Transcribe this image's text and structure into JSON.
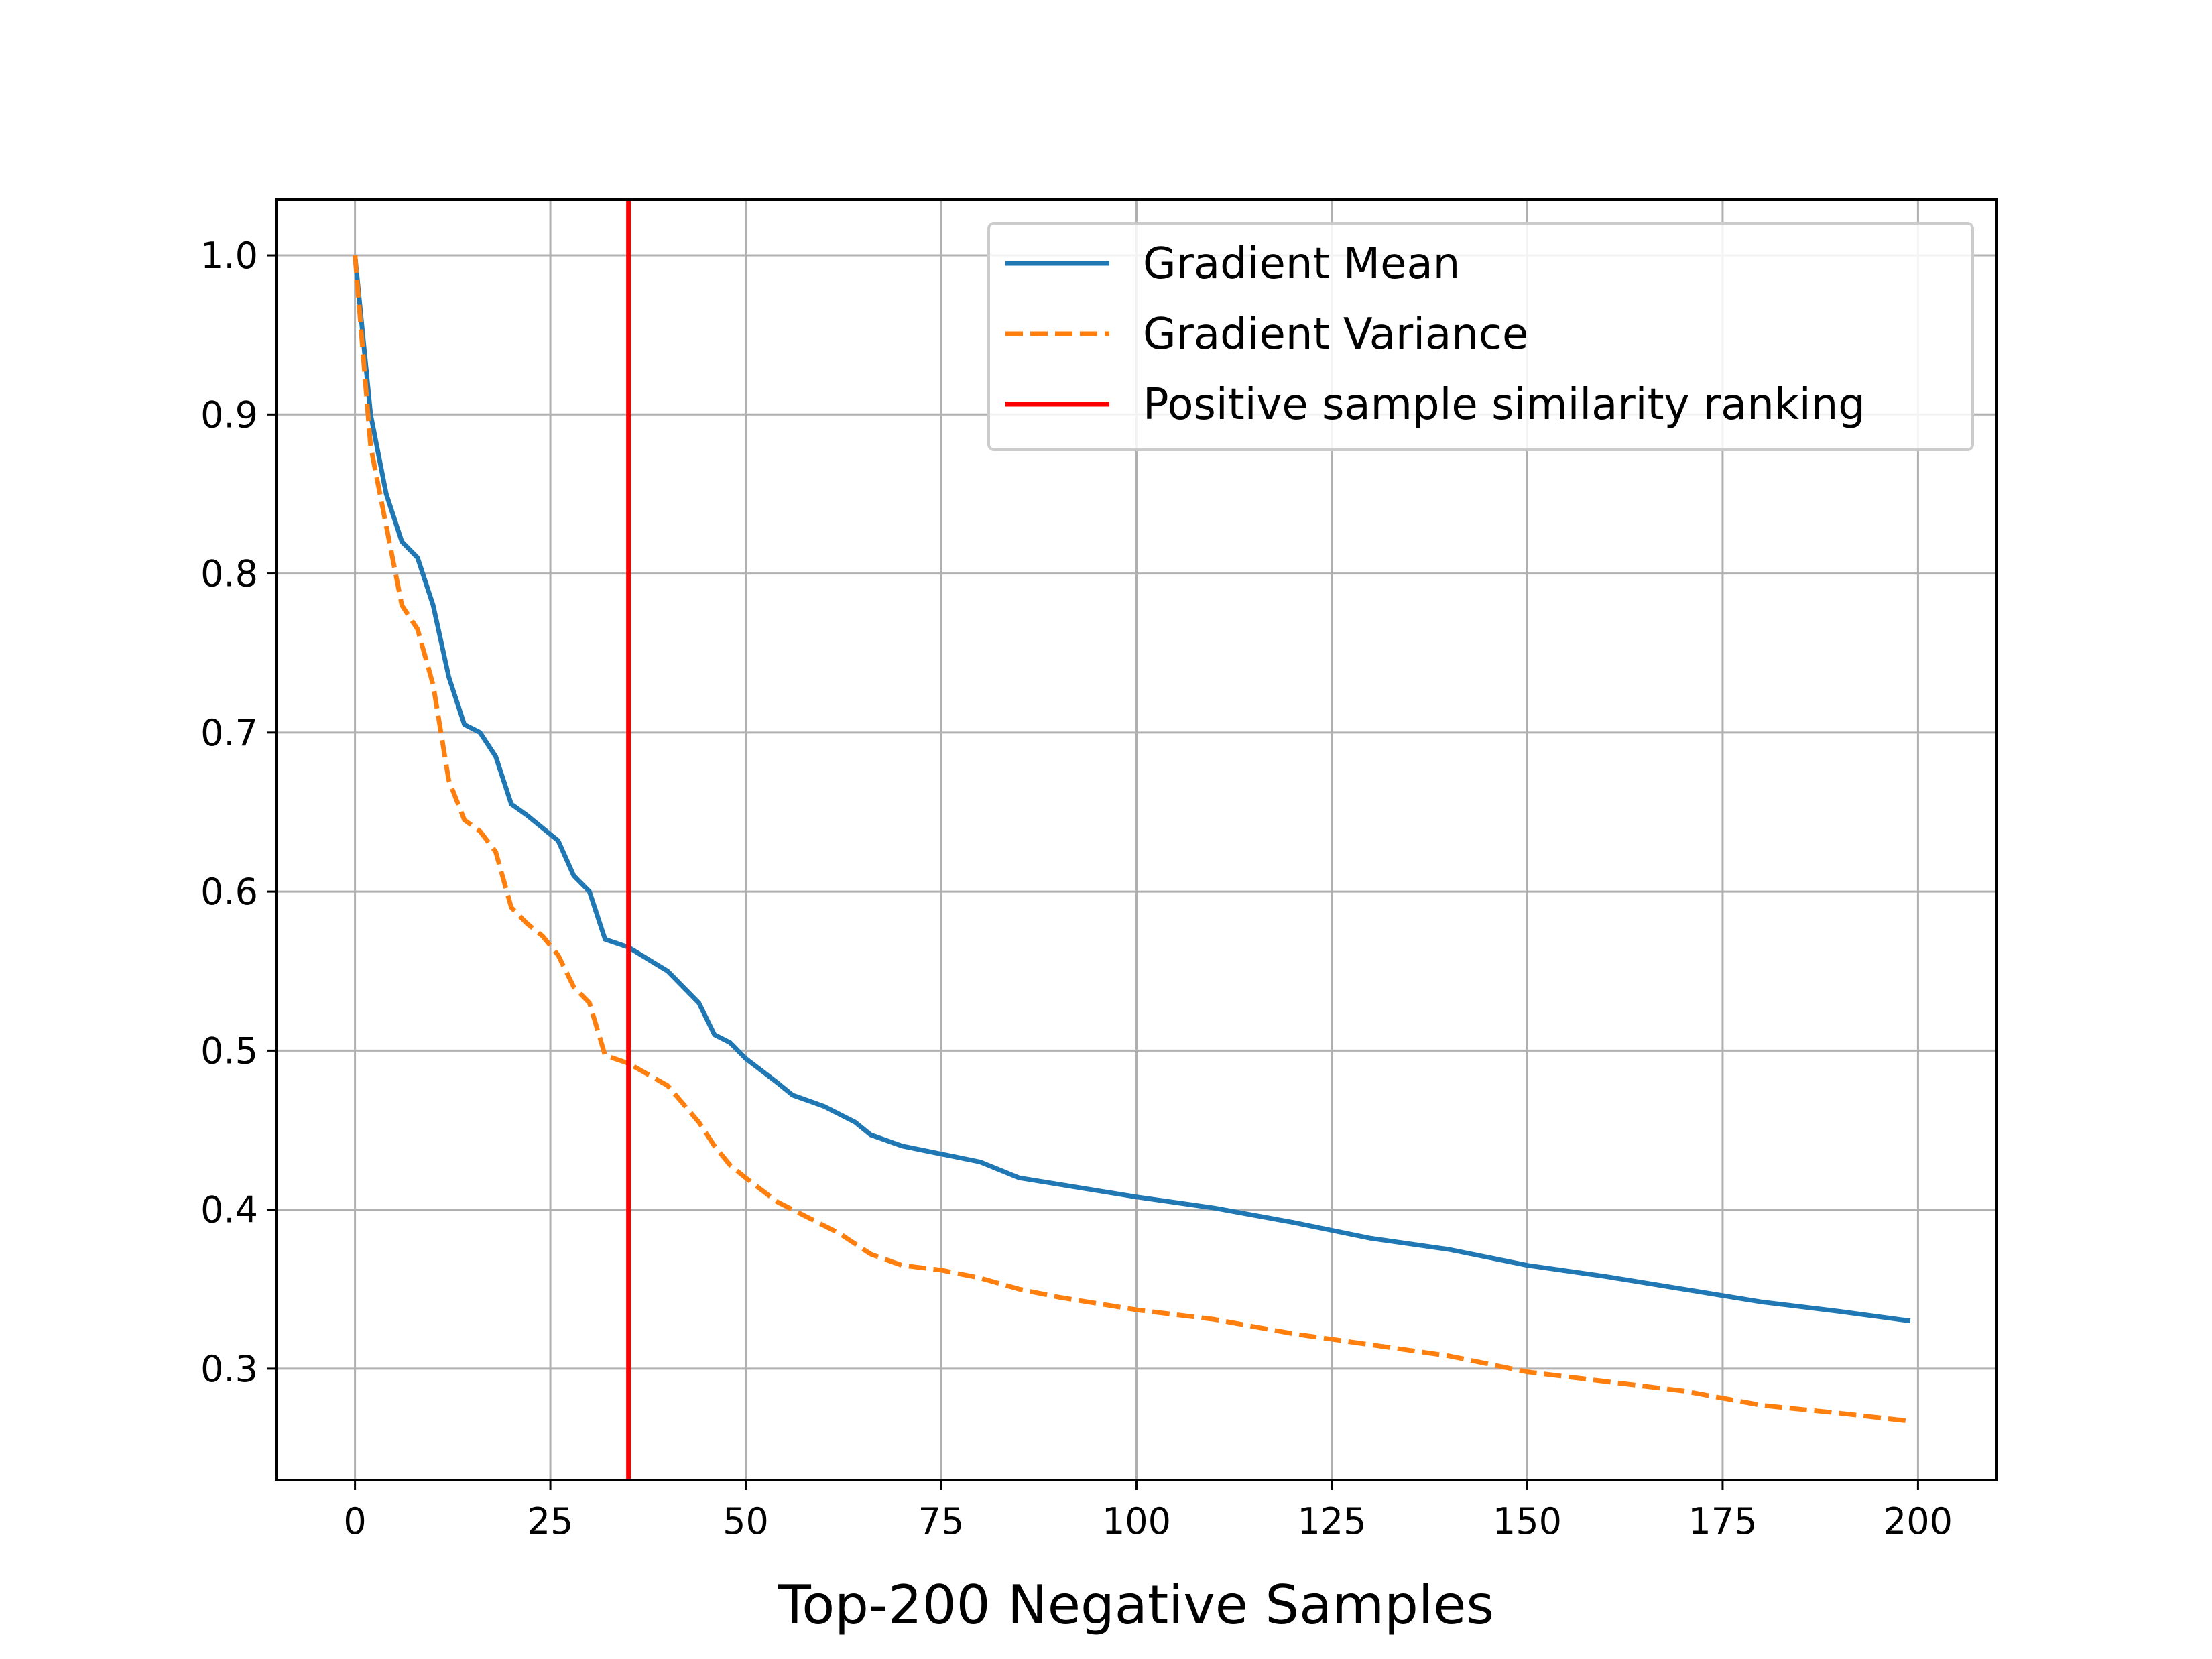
{
  "chart_data": {
    "type": "line",
    "title": "",
    "xlabel": "Top-200 Negative Samples",
    "ylabel": "",
    "xlim": [
      -10,
      210
    ],
    "ylim": [
      0.23,
      1.035
    ],
    "grid": true,
    "legend_position": "top-right",
    "x_ticks": [
      0,
      25,
      50,
      75,
      100,
      125,
      150,
      175,
      200
    ],
    "x_tick_labels": [
      "0",
      "25",
      "50",
      "75",
      "100",
      "125",
      "150",
      "175",
      "200"
    ],
    "y_ticks": [
      0.3,
      0.4,
      0.5,
      0.6,
      0.7,
      0.8,
      0.9,
      1.0
    ],
    "y_tick_labels": [
      "0.3",
      "0.4",
      "0.5",
      "0.6",
      "0.7",
      "0.8",
      "0.9",
      "1.0"
    ],
    "series": [
      {
        "name": "Gradient Mean",
        "color": "#1f77b4",
        "style": "solid",
        "points": [
          [
            0,
            1.0
          ],
          [
            2,
            0.9
          ],
          [
            4,
            0.85
          ],
          [
            6,
            0.82
          ],
          [
            8,
            0.81
          ],
          [
            10,
            0.78
          ],
          [
            12,
            0.735
          ],
          [
            14,
            0.705
          ],
          [
            16,
            0.7
          ],
          [
            18,
            0.685
          ],
          [
            20,
            0.655
          ],
          [
            22,
            0.648
          ],
          [
            24,
            0.64
          ],
          [
            26,
            0.632
          ],
          [
            28,
            0.61
          ],
          [
            30,
            0.6
          ],
          [
            32,
            0.57
          ],
          [
            35,
            0.565
          ],
          [
            40,
            0.55
          ],
          [
            44,
            0.53
          ],
          [
            46,
            0.51
          ],
          [
            48,
            0.505
          ],
          [
            50,
            0.495
          ],
          [
            54,
            0.48
          ],
          [
            56,
            0.472
          ],
          [
            60,
            0.465
          ],
          [
            64,
            0.455
          ],
          [
            66,
            0.447
          ],
          [
            70,
            0.44
          ],
          [
            75,
            0.435
          ],
          [
            80,
            0.43
          ],
          [
            85,
            0.42
          ],
          [
            90,
            0.416
          ],
          [
            100,
            0.408
          ],
          [
            110,
            0.401
          ],
          [
            120,
            0.392
          ],
          [
            130,
            0.382
          ],
          [
            140,
            0.375
          ],
          [
            150,
            0.365
          ],
          [
            160,
            0.358
          ],
          [
            170,
            0.35
          ],
          [
            180,
            0.342
          ],
          [
            190,
            0.336
          ],
          [
            199,
            0.33
          ]
        ]
      },
      {
        "name": "Gradient Variance",
        "color": "#ff7f0e",
        "style": "dashed",
        "points": [
          [
            0,
            1.0
          ],
          [
            2,
            0.88
          ],
          [
            4,
            0.83
          ],
          [
            6,
            0.78
          ],
          [
            8,
            0.765
          ],
          [
            10,
            0.73
          ],
          [
            12,
            0.67
          ],
          [
            14,
            0.645
          ],
          [
            16,
            0.638
          ],
          [
            18,
            0.625
          ],
          [
            20,
            0.59
          ],
          [
            22,
            0.58
          ],
          [
            24,
            0.572
          ],
          [
            26,
            0.56
          ],
          [
            28,
            0.54
          ],
          [
            30,
            0.53
          ],
          [
            32,
            0.497
          ],
          [
            35,
            0.492
          ],
          [
            40,
            0.478
          ],
          [
            44,
            0.455
          ],
          [
            46,
            0.44
          ],
          [
            48,
            0.428
          ],
          [
            50,
            0.42
          ],
          [
            54,
            0.405
          ],
          [
            58,
            0.395
          ],
          [
            62,
            0.385
          ],
          [
            66,
            0.372
          ],
          [
            70,
            0.365
          ],
          [
            75,
            0.362
          ],
          [
            80,
            0.357
          ],
          [
            85,
            0.35
          ],
          [
            90,
            0.345
          ],
          [
            100,
            0.337
          ],
          [
            110,
            0.331
          ],
          [
            120,
            0.322
          ],
          [
            130,
            0.315
          ],
          [
            140,
            0.308
          ],
          [
            150,
            0.298
          ],
          [
            160,
            0.292
          ],
          [
            170,
            0.286
          ],
          [
            180,
            0.277
          ],
          [
            190,
            0.272
          ],
          [
            199,
            0.267
          ]
        ]
      },
      {
        "name": "Positive sample similarity ranking",
        "color": "#ff0000",
        "style": "solid",
        "vline_x": 35
      }
    ]
  }
}
